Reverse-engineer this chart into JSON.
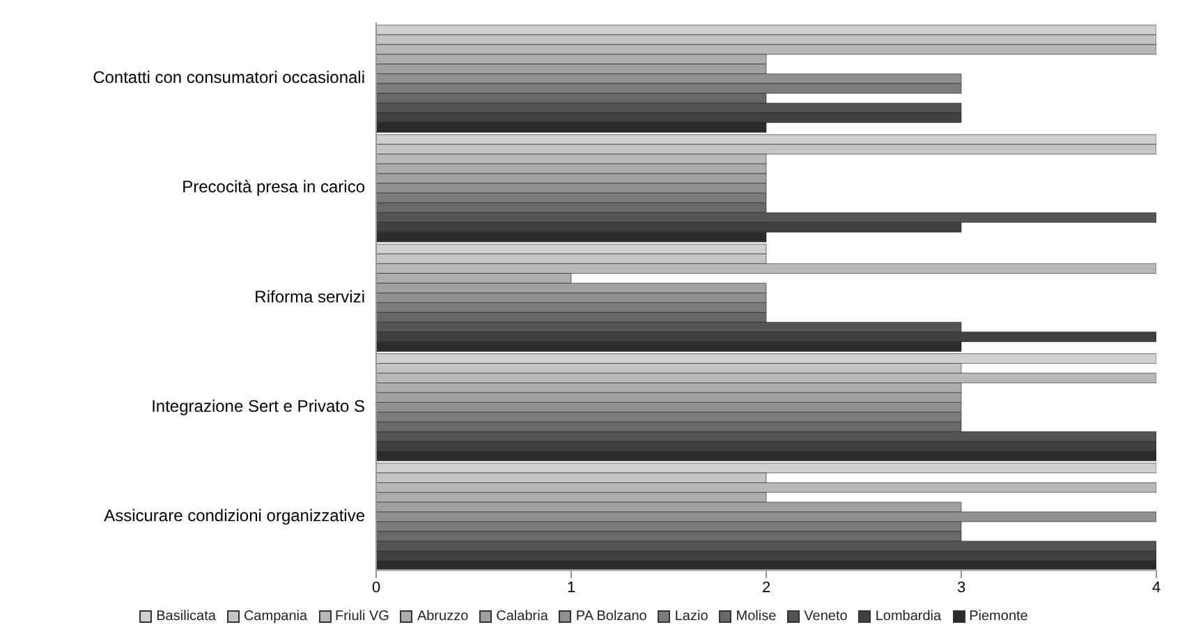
{
  "chart_data": {
    "type": "bar",
    "orientation": "horizontal",
    "categories": [
      "Contatti con consumatori occasionali",
      "Precocità presa in carico",
      "Riforma servizi",
      "Integrazione Sert e Privato S",
      "Assicurare condizioni organizzative"
    ],
    "series": [
      {
        "name": "Basilicata",
        "color": "#d0d0d0",
        "values": [
          4,
          4,
          2,
          4,
          4
        ]
      },
      {
        "name": "Campania",
        "color": "#c4c4c4",
        "values": [
          4,
          4,
          2,
          3,
          2
        ]
      },
      {
        "name": "Friuli VG",
        "color": "#b8b8b8",
        "values": [
          4,
          2,
          4,
          4,
          4
        ]
      },
      {
        "name": "Abruzzo",
        "color": "#acacac",
        "values": [
          2,
          2,
          1,
          3,
          2
        ]
      },
      {
        "name": "Calabria",
        "color": "#a0a0a0",
        "values": [
          2,
          2,
          2,
          3,
          3
        ]
      },
      {
        "name": "PA Bolzano",
        "color": "#909090",
        "values": [
          3,
          2,
          2,
          3,
          4
        ]
      },
      {
        "name": "Lazio",
        "color": "#7c7c7c",
        "values": [
          3,
          2,
          2,
          3,
          3
        ]
      },
      {
        "name": "Molise",
        "color": "#686868",
        "values": [
          2,
          2,
          2,
          3,
          3
        ]
      },
      {
        "name": "Veneto",
        "color": "#545454",
        "values": [
          3,
          4,
          3,
          4,
          4
        ]
      },
      {
        "name": "Lombardia",
        "color": "#404040",
        "values": [
          3,
          3,
          4,
          4,
          4
        ]
      },
      {
        "name": "Piemonte",
        "color": "#2c2c2c",
        "values": [
          2,
          2,
          3,
          4,
          4
        ]
      }
    ],
    "xlim": [
      0,
      4
    ],
    "xticks": [
      0,
      1,
      2,
      3,
      4
    ],
    "grid": false,
    "legend": "bottom"
  }
}
